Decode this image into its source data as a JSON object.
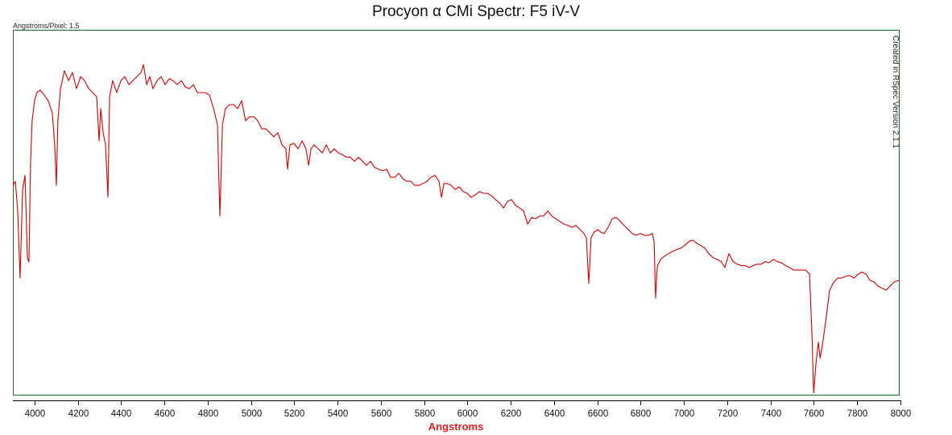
{
  "chart_data": {
    "type": "line",
    "title": "Procyon α CMi Spectr: F5 iV-V",
    "subtitle": "Angstroms/Pixel: 1.5",
    "annotation": "Created in RSpec Version 2.1.1",
    "xlabel": "Angstroms",
    "ylabel": "",
    "xlim": [
      3900,
      8000
    ],
    "ylim": [
      0,
      1
    ],
    "x_ticks": [
      "4000",
      "4200",
      "4400",
      "4600",
      "4800",
      "5000",
      "5200",
      "5400",
      "5600",
      "5800",
      "6000",
      "6200",
      "6400",
      "6600",
      "6800",
      "7000",
      "7200",
      "7400",
      "7600",
      "7800",
      "8000"
    ],
    "y_ticks": [],
    "grid": false,
    "colors": {
      "line": "#d00000",
      "frame": "#1a6b1a",
      "xlabel": "#e02020"
    },
    "series": [
      {
        "points": [
          [
            3900,
            0.576
          ],
          [
            3911,
            0.587
          ],
          [
            3922,
            0.51
          ],
          [
            3933,
            0.322
          ],
          [
            3945,
            0.565
          ],
          [
            3956,
            0.603
          ],
          [
            3967,
            0.377
          ],
          [
            3974,
            0.366
          ],
          [
            3982,
            0.642
          ],
          [
            3989,
            0.753
          ],
          [
            4000,
            0.808
          ],
          [
            4011,
            0.83
          ],
          [
            4027,
            0.837
          ],
          [
            4045,
            0.823
          ],
          [
            4063,
            0.808
          ],
          [
            4082,
            0.775
          ],
          [
            4093,
            0.687
          ],
          [
            4101,
            0.576
          ],
          [
            4108,
            0.753
          ],
          [
            4120,
            0.841
          ],
          [
            4138,
            0.89
          ],
          [
            4157,
            0.863
          ],
          [
            4175,
            0.885
          ],
          [
            4194,
            0.841
          ],
          [
            4213,
            0.874
          ],
          [
            4231,
            0.863
          ],
          [
            4250,
            0.841
          ],
          [
            4269,
            0.83
          ],
          [
            4287,
            0.819
          ],
          [
            4298,
            0.698
          ],
          [
            4306,
            0.786
          ],
          [
            4317,
            0.72
          ],
          [
            4328,
            0.687
          ],
          [
            4339,
            0.543
          ],
          [
            4347,
            0.819
          ],
          [
            4361,
            0.863
          ],
          [
            4380,
            0.83
          ],
          [
            4399,
            0.863
          ],
          [
            4417,
            0.874
          ],
          [
            4436,
            0.852
          ],
          [
            4454,
            0.863
          ],
          [
            4473,
            0.874
          ],
          [
            4492,
            0.885
          ],
          [
            4503,
            0.907
          ],
          [
            4518,
            0.852
          ],
          [
            4533,
            0.874
          ],
          [
            4547,
            0.841
          ],
          [
            4566,
            0.863
          ],
          [
            4585,
            0.874
          ],
          [
            4603,
            0.852
          ],
          [
            4622,
            0.868
          ],
          [
            4640,
            0.863
          ],
          [
            4659,
            0.852
          ],
          [
            4678,
            0.863
          ],
          [
            4696,
            0.846
          ],
          [
            4715,
            0.841
          ],
          [
            4734,
            0.852
          ],
          [
            4752,
            0.83
          ],
          [
            4771,
            0.83
          ],
          [
            4789,
            0.83
          ],
          [
            4808,
            0.823
          ],
          [
            4827,
            0.786
          ],
          [
            4845,
            0.742
          ],
          [
            4856,
            0.492
          ],
          [
            4868,
            0.742
          ],
          [
            4882,
            0.786
          ],
          [
            4901,
            0.797
          ],
          [
            4920,
            0.797
          ],
          [
            4938,
            0.786
          ],
          [
            4957,
            0.808
          ],
          [
            4975,
            0.753
          ],
          [
            4994,
            0.764
          ],
          [
            5013,
            0.764
          ],
          [
            5031,
            0.753
          ],
          [
            5050,
            0.731
          ],
          [
            5069,
            0.731
          ],
          [
            5087,
            0.72
          ],
          [
            5106,
            0.709
          ],
          [
            5124,
            0.72
          ],
          [
            5143,
            0.687
          ],
          [
            5161,
            0.676
          ],
          [
            5169,
            0.62
          ],
          [
            5180,
            0.687
          ],
          [
            5199,
            0.691
          ],
          [
            5217,
            0.676
          ],
          [
            5236,
            0.698
          ],
          [
            5254,
            0.676
          ],
          [
            5266,
            0.631
          ],
          [
            5277,
            0.676
          ],
          [
            5292,
            0.687
          ],
          [
            5310,
            0.676
          ],
          [
            5329,
            0.665
          ],
          [
            5348,
            0.687
          ],
          [
            5366,
            0.665
          ],
          [
            5385,
            0.676
          ],
          [
            5403,
            0.665
          ],
          [
            5422,
            0.66
          ],
          [
            5441,
            0.653
          ],
          [
            5459,
            0.653
          ],
          [
            5478,
            0.642
          ],
          [
            5496,
            0.653
          ],
          [
            5515,
            0.642
          ],
          [
            5534,
            0.631
          ],
          [
            5552,
            0.642
          ],
          [
            5571,
            0.625
          ],
          [
            5590,
            0.62
          ],
          [
            5608,
            0.616
          ],
          [
            5627,
            0.62
          ],
          [
            5645,
            0.598
          ],
          [
            5664,
            0.598
          ],
          [
            5683,
            0.609
          ],
          [
            5701,
            0.594
          ],
          [
            5720,
            0.587
          ],
          [
            5738,
            0.587
          ],
          [
            5757,
            0.576
          ],
          [
            5776,
            0.576
          ],
          [
            5794,
            0.581
          ],
          [
            5813,
            0.587
          ],
          [
            5831,
            0.598
          ],
          [
            5850,
            0.603
          ],
          [
            5868,
            0.587
          ],
          [
            5880,
            0.543
          ],
          [
            5891,
            0.581
          ],
          [
            5906,
            0.581
          ],
          [
            5924,
            0.576
          ],
          [
            5943,
            0.565
          ],
          [
            5962,
            0.572
          ],
          [
            5980,
            0.559
          ],
          [
            5999,
            0.554
          ],
          [
            6017,
            0.543
          ],
          [
            6036,
            0.55
          ],
          [
            6055,
            0.559
          ],
          [
            6073,
            0.554
          ],
          [
            6092,
            0.554
          ],
          [
            6110,
            0.548
          ],
          [
            6129,
            0.537
          ],
          [
            6148,
            0.528
          ],
          [
            6166,
            0.514
          ],
          [
            6185,
            0.532
          ],
          [
            6203,
            0.537
          ],
          [
            6222,
            0.521
          ],
          [
            6241,
            0.514
          ],
          [
            6259,
            0.506
          ],
          [
            6278,
            0.47
          ],
          [
            6297,
            0.488
          ],
          [
            6315,
            0.484
          ],
          [
            6334,
            0.492
          ],
          [
            6352,
            0.492
          ],
          [
            6371,
            0.506
          ],
          [
            6389,
            0.492
          ],
          [
            6408,
            0.484
          ],
          [
            6427,
            0.477
          ],
          [
            6445,
            0.47
          ],
          [
            6464,
            0.466
          ],
          [
            6482,
            0.461
          ],
          [
            6501,
            0.466
          ],
          [
            6520,
            0.455
          ],
          [
            6538,
            0.444
          ],
          [
            6549,
            0.433
          ],
          [
            6560,
            0.307
          ],
          [
            6571,
            0.433
          ],
          [
            6586,
            0.448
          ],
          [
            6601,
            0.455
          ],
          [
            6616,
            0.448
          ],
          [
            6631,
            0.444
          ],
          [
            6650,
            0.461
          ],
          [
            6668,
            0.484
          ],
          [
            6687,
            0.488
          ],
          [
            6706,
            0.477
          ],
          [
            6724,
            0.466
          ],
          [
            6743,
            0.455
          ],
          [
            6761,
            0.444
          ],
          [
            6780,
            0.439
          ],
          [
            6799,
            0.444
          ],
          [
            6817,
            0.439
          ],
          [
            6836,
            0.439
          ],
          [
            6854,
            0.444
          ],
          [
            6862,
            0.422
          ],
          [
            6869,
            0.267
          ],
          [
            6877,
            0.355
          ],
          [
            6892,
            0.373
          ],
          [
            6910,
            0.382
          ],
          [
            6929,
            0.389
          ],
          [
            6947,
            0.395
          ],
          [
            6966,
            0.4
          ],
          [
            6985,
            0.404
          ],
          [
            7003,
            0.411
          ],
          [
            7022,
            0.422
          ],
          [
            7041,
            0.426
          ],
          [
            7059,
            0.417
          ],
          [
            7078,
            0.411
          ],
          [
            7096,
            0.404
          ],
          [
            7115,
            0.389
          ],
          [
            7134,
            0.378
          ],
          [
            7152,
            0.373
          ],
          [
            7171,
            0.367
          ],
          [
            7189,
            0.351
          ],
          [
            7208,
            0.389
          ],
          [
            7227,
            0.367
          ],
          [
            7245,
            0.36
          ],
          [
            7264,
            0.356
          ],
          [
            7283,
            0.356
          ],
          [
            7301,
            0.351
          ],
          [
            7320,
            0.356
          ],
          [
            7338,
            0.36
          ],
          [
            7357,
            0.36
          ],
          [
            7376,
            0.367
          ],
          [
            7394,
            0.364
          ],
          [
            7413,
            0.373
          ],
          [
            7431,
            0.367
          ],
          [
            7450,
            0.364
          ],
          [
            7469,
            0.356
          ],
          [
            7487,
            0.351
          ],
          [
            7506,
            0.344
          ],
          [
            7524,
            0.344
          ],
          [
            7543,
            0.344
          ],
          [
            7562,
            0.344
          ],
          [
            7580,
            0.333
          ],
          [
            7592,
            0.157
          ],
          [
            7599,
            0.007
          ],
          [
            7610,
            0.091
          ],
          [
            7621,
            0.146
          ],
          [
            7629,
            0.102
          ],
          [
            7644,
            0.157
          ],
          [
            7659,
            0.223
          ],
          [
            7673,
            0.289
          ],
          [
            7692,
            0.311
          ],
          [
            7711,
            0.322
          ],
          [
            7729,
            0.322
          ],
          [
            7748,
            0.327
          ],
          [
            7766,
            0.329
          ],
          [
            7785,
            0.322
          ],
          [
            7804,
            0.333
          ],
          [
            7822,
            0.338
          ],
          [
            7841,
            0.333
          ],
          [
            7859,
            0.316
          ],
          [
            7878,
            0.311
          ],
          [
            7897,
            0.3
          ],
          [
            7915,
            0.294
          ],
          [
            7934,
            0.289
          ],
          [
            7952,
            0.3
          ],
          [
            7971,
            0.311
          ],
          [
            7993,
            0.316
          ]
        ]
      }
    ]
  }
}
